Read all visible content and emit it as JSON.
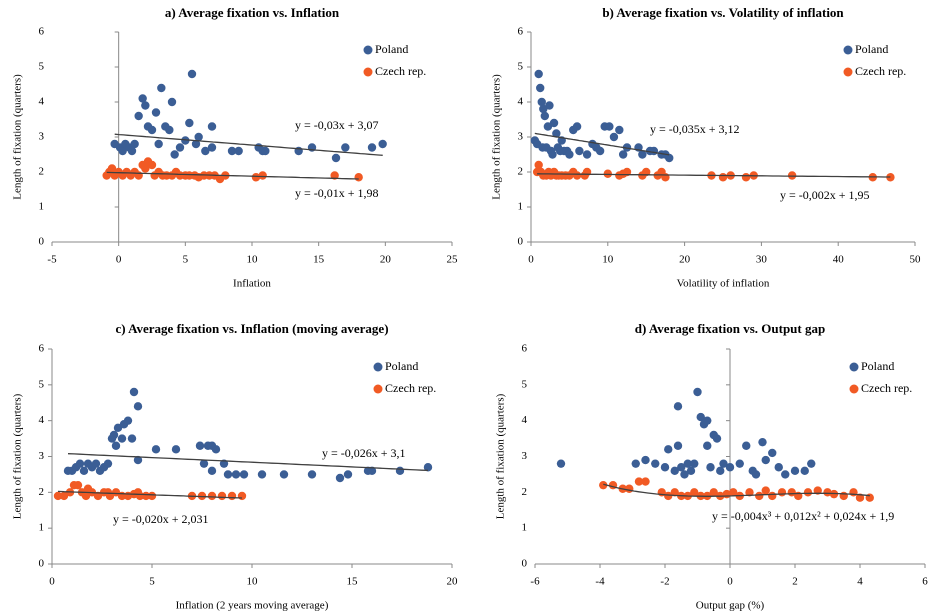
{
  "chart_data": [
    {
      "type": "scatter",
      "title": "a) Average fixation vs. Inflation",
      "x_label": "Inflation",
      "y_label": "Length of fixation (quarters)",
      "xlim": [
        -5,
        25
      ],
      "ylim": [
        0,
        6
      ],
      "xticks": [
        -5,
        0,
        5,
        10,
        15,
        20,
        25
      ],
      "yticks": [
        0,
        1,
        2,
        3,
        4,
        5,
        6
      ],
      "legend": "upper right",
      "series": [
        {
          "name": "Poland",
          "color": "#3b5e95",
          "x": [
            -0.3,
            0.1,
            0.3,
            0.5,
            0.8,
            1,
            1.2,
            1.5,
            1.8,
            2,
            2.2,
            2.5,
            2.8,
            3,
            3.2,
            3.5,
            3.8,
            4,
            4.2,
            4.6,
            5,
            5.3,
            5.5,
            5.8,
            6,
            6.5,
            7,
            7,
            8.5,
            9,
            10.5,
            10.8,
            11,
            13.5,
            14.5,
            16.3,
            17,
            19,
            19.8
          ],
          "values": [
            2.8,
            2.7,
            2.6,
            2.8,
            2.7,
            2.6,
            2.8,
            3.6,
            4.1,
            3.9,
            3.3,
            3.2,
            3.7,
            2.8,
            4.4,
            3.3,
            3.2,
            4.0,
            2.5,
            2.7,
            2.9,
            3.4,
            4.8,
            2.8,
            3.0,
            2.6,
            3.3,
            2.7,
            2.6,
            2.6,
            2.7,
            2.6,
            2.6,
            2.6,
            2.7,
            2.4,
            2.7,
            2.7,
            2.8
          ],
          "trendline": {
            "label": "y = -0,03x + 3,07",
            "coefficients": [
              -0.03,
              3.07
            ]
          }
        },
        {
          "name": "Czech rep.",
          "color": "#f15a24",
          "x": [
            -0.9,
            -0.7,
            -0.5,
            -0.3,
            0,
            0.3,
            0.6,
            0.9,
            1.2,
            1.5,
            1.8,
            2,
            2.2,
            2.5,
            2.7,
            3,
            3.3,
            3.6,
            4,
            4.3,
            4.6,
            5,
            5.3,
            5.7,
            6,
            6.4,
            6.8,
            7.2,
            7.6,
            8,
            10.3,
            10.8,
            16.2,
            18
          ],
          "values": [
            1.9,
            2.0,
            2.1,
            1.9,
            2.0,
            1.9,
            2.0,
            1.9,
            2.0,
            1.9,
            2.2,
            2.1,
            2.3,
            2.2,
            1.9,
            2.0,
            1.9,
            1.9,
            1.9,
            2.0,
            1.9,
            1.9,
            1.9,
            1.9,
            1.85,
            1.9,
            1.9,
            1.9,
            1.8,
            1.9,
            1.85,
            1.9,
            1.9,
            1.85
          ],
          "trendline": {
            "label": "y = -0,01x + 1,98",
            "coefficients": [
              -0.01,
              1.98
            ]
          }
        }
      ]
    },
    {
      "type": "scatter",
      "title": "b) Average fixation vs. Volatility of inflation",
      "x_label": "Volatility of inflation",
      "y_label": "Length of fixation  (quarters)",
      "xlim": [
        0,
        50
      ],
      "ylim": [
        0,
        6
      ],
      "xticks": [
        0,
        10,
        20,
        30,
        40,
        50
      ],
      "yticks": [
        0,
        1,
        2,
        3,
        4,
        5,
        6
      ],
      "legend": "upper right",
      "series": [
        {
          "name": "Poland",
          "color": "#3b5e95",
          "x": [
            0.5,
            0.8,
            1,
            1.2,
            1.4,
            1.5,
            1.6,
            1.8,
            2,
            2.2,
            2.4,
            2.6,
            2.8,
            3,
            3.3,
            3.5,
            3.8,
            4,
            4.3,
            4.7,
            5,
            5.5,
            6,
            6.3,
            7.3,
            8,
            8.5,
            9,
            9.6,
            10.2,
            10.8,
            11.5,
            12,
            12.5,
            14,
            14.5,
            15.5,
            16,
            17,
            17.5,
            18
          ],
          "values": [
            2.9,
            2.8,
            4.8,
            4.4,
            4.0,
            2.7,
            3.8,
            3.6,
            2.7,
            3.3,
            3.9,
            2.6,
            2.5,
            3.4,
            3.1,
            2.7,
            2.6,
            2.9,
            2.6,
            2.6,
            2.5,
            3.2,
            3.3,
            2.6,
            2.5,
            2.8,
            2.7,
            2.6,
            3.3,
            3.3,
            3.0,
            3.2,
            2.5,
            2.7,
            2.7,
            2.5,
            2.6,
            2.6,
            2.5,
            2.5,
            2.4
          ],
          "trendline": {
            "label": "y = -0,035x + 3,12",
            "coefficients": [
              -0.035,
              3.12
            ]
          }
        },
        {
          "name": "Czech rep.",
          "color": "#f15a24",
          "x": [
            0.8,
            1,
            1.3,
            1.6,
            2,
            2.3,
            2.6,
            3,
            3.3,
            3.6,
            4,
            4.5,
            5,
            5.5,
            6,
            7,
            7.3,
            10,
            11.5,
            12,
            12.5,
            14.5,
            15,
            16.5,
            17,
            17.5,
            23.5,
            25,
            26,
            28,
            29,
            34,
            44.5,
            46.8
          ],
          "values": [
            2.0,
            2.2,
            2.0,
            1.9,
            1.9,
            2.0,
            1.9,
            2.0,
            1.9,
            1.9,
            1.9,
            1.9,
            1.9,
            2.0,
            1.9,
            1.9,
            2.0,
            1.95,
            1.9,
            1.95,
            2.0,
            1.9,
            2.0,
            1.9,
            2.0,
            1.85,
            1.9,
            1.85,
            1.9,
            1.85,
            1.9,
            1.9,
            1.85,
            1.85
          ],
          "trendline": {
            "label": "y = -0,002x + 1,95",
            "coefficients": [
              -0.002,
              1.95
            ]
          }
        }
      ]
    },
    {
      "type": "scatter",
      "title": "c) Average fixation vs. Inflation (moving average)",
      "x_label": "Inflation (2 years moving average)",
      "y_label": "Length of fixation (quarters)",
      "xlim": [
        0,
        20
      ],
      "ylim": [
        0,
        6
      ],
      "xticks": [
        0,
        5,
        10,
        15,
        20
      ],
      "yticks": [
        0,
        1,
        2,
        3,
        4,
        5,
        6
      ],
      "legend": "upper right",
      "series": [
        {
          "name": "Poland",
          "color": "#3b5e95",
          "x": [
            0.8,
            1,
            1.2,
            1.4,
            1.6,
            1.8,
            2,
            2.2,
            2.4,
            2.6,
            2.8,
            3,
            3.1,
            3.2,
            3.3,
            3.5,
            3.6,
            3.8,
            4,
            4.1,
            4.3,
            4.3,
            5.2,
            6.2,
            7.4,
            7.6,
            7.8,
            8,
            8,
            8.2,
            8.6,
            8.8,
            9.2,
            9.6,
            10.5,
            11.6,
            13,
            14.4,
            14.8,
            15.8,
            16,
            17.4,
            18.8
          ],
          "values": [
            2.6,
            2.6,
            2.7,
            2.8,
            2.6,
            2.8,
            2.7,
            2.8,
            2.6,
            2.7,
            2.8,
            3.5,
            3.6,
            3.3,
            3.8,
            3.5,
            3.9,
            4.0,
            3.5,
            4.8,
            4.4,
            2.9,
            3.2,
            3.2,
            3.3,
            2.8,
            3.3,
            2.6,
            3.3,
            3.2,
            2.8,
            2.5,
            2.5,
            2.5,
            2.5,
            2.5,
            2.5,
            2.4,
            2.5,
            2.6,
            2.6,
            2.6,
            2.7
          ],
          "trendline": {
            "label": "y = -0,026x + 3,1",
            "coefficients": [
              -0.026,
              3.1
            ]
          }
        },
        {
          "name": "Czech rep.",
          "color": "#f15a24",
          "x": [
            0.3,
            0.6,
            0.9,
            1.1,
            1.3,
            1.5,
            1.7,
            1.8,
            2,
            2.3,
            2.6,
            2.8,
            2.9,
            3.2,
            3.5,
            3.8,
            4.1,
            4.3,
            4.4,
            4.7,
            5,
            7,
            7.5,
            8,
            8.5,
            9,
            9.5
          ],
          "values": [
            1.9,
            1.9,
            2.0,
            2.2,
            2.2,
            2.0,
            1.9,
            2.1,
            2.0,
            1.9,
            2.0,
            2.0,
            1.9,
            2.0,
            1.9,
            1.9,
            1.95,
            2.0,
            1.9,
            1.9,
            1.9,
            1.9,
            1.9,
            1.9,
            1.9,
            1.9,
            1.9
          ],
          "trendline": {
            "label": "y = -0,020x + 2,031",
            "coefficients": [
              -0.02,
              2.031
            ]
          }
        }
      ]
    },
    {
      "type": "scatter",
      "title": "d) Average fixation vs. Output gap",
      "x_label": "Output gap (%)",
      "y_label": "Length of fixation  (quarters)",
      "xlim": [
        -6,
        6
      ],
      "ylim": [
        0,
        6
      ],
      "xticks": [
        -6,
        -4,
        -2,
        0,
        2,
        4,
        6
      ],
      "yticks": [
        0,
        1,
        2,
        3,
        4,
        5,
        6
      ],
      "legend": "upper right",
      "series": [
        {
          "name": "Poland",
          "color": "#3b5e95",
          "x": [
            -5.2,
            -2.9,
            -2.6,
            -2.3,
            -2,
            -1.9,
            -1.7,
            -1.6,
            -1.6,
            -1.5,
            -1.4,
            -1.3,
            -1.2,
            -1.1,
            -1,
            -0.9,
            -0.8,
            -0.7,
            -0.7,
            -0.6,
            -0.5,
            -0.4,
            -0.3,
            -0.2,
            0,
            0.3,
            0.5,
            0.7,
            0.8,
            1,
            1.1,
            1.3,
            1.5,
            1.7,
            2,
            2.3,
            2.5
          ],
          "values": [
            2.8,
            2.8,
            2.9,
            2.8,
            2.7,
            3.2,
            2.6,
            3.3,
            4.4,
            2.7,
            2.5,
            2.8,
            2.6,
            2.8,
            4.8,
            4.1,
            3.9,
            4.0,
            3.3,
            2.7,
            3.6,
            3.5,
            2.6,
            2.8,
            2.7,
            2.8,
            3.3,
            2.6,
            2.5,
            3.4,
            2.9,
            3.1,
            2.7,
            2.5,
            2.6,
            2.6,
            2.8
          ]
        },
        {
          "name": "Czech rep.",
          "color": "#f15a24",
          "x": [
            -3.9,
            -3.6,
            -3.3,
            -3.1,
            -2.8,
            -2.6,
            -2.1,
            -1.9,
            -1.7,
            -1.5,
            -1.3,
            -1.1,
            -0.9,
            -0.7,
            -0.5,
            -0.3,
            -0.1,
            0.1,
            0.3,
            0.6,
            0.9,
            1.1,
            1.3,
            1.6,
            1.9,
            2.1,
            2.4,
            2.7,
            3,
            3.2,
            3.5,
            3.8,
            4,
            4.3
          ],
          "values": [
            2.2,
            2.2,
            2.1,
            2.1,
            2.3,
            2.3,
            2.0,
            1.9,
            2.0,
            1.9,
            1.9,
            2.0,
            1.9,
            1.9,
            2.0,
            1.9,
            1.95,
            2.0,
            1.9,
            2.0,
            1.9,
            2.05,
            1.9,
            2.0,
            2.0,
            1.9,
            2.0,
            2.05,
            2.0,
            1.95,
            1.9,
            2.0,
            1.85,
            1.85
          ],
          "trendline": {
            "label": "y = -0,004x³ + 0,012x² + 0,024x + 1,9",
            "coefficients": [
              -0.004,
              0.012,
              0.024,
              1.9
            ]
          }
        }
      ]
    }
  ]
}
